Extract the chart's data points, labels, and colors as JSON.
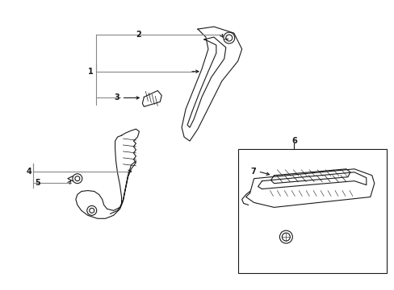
{
  "background_color": "#ffffff",
  "line_color": "#1a1a1a",
  "gray_line_color": "#888888",
  "label_color": "#000000",
  "figure_width": 4.89,
  "figure_height": 3.6,
  "dpi": 100
}
